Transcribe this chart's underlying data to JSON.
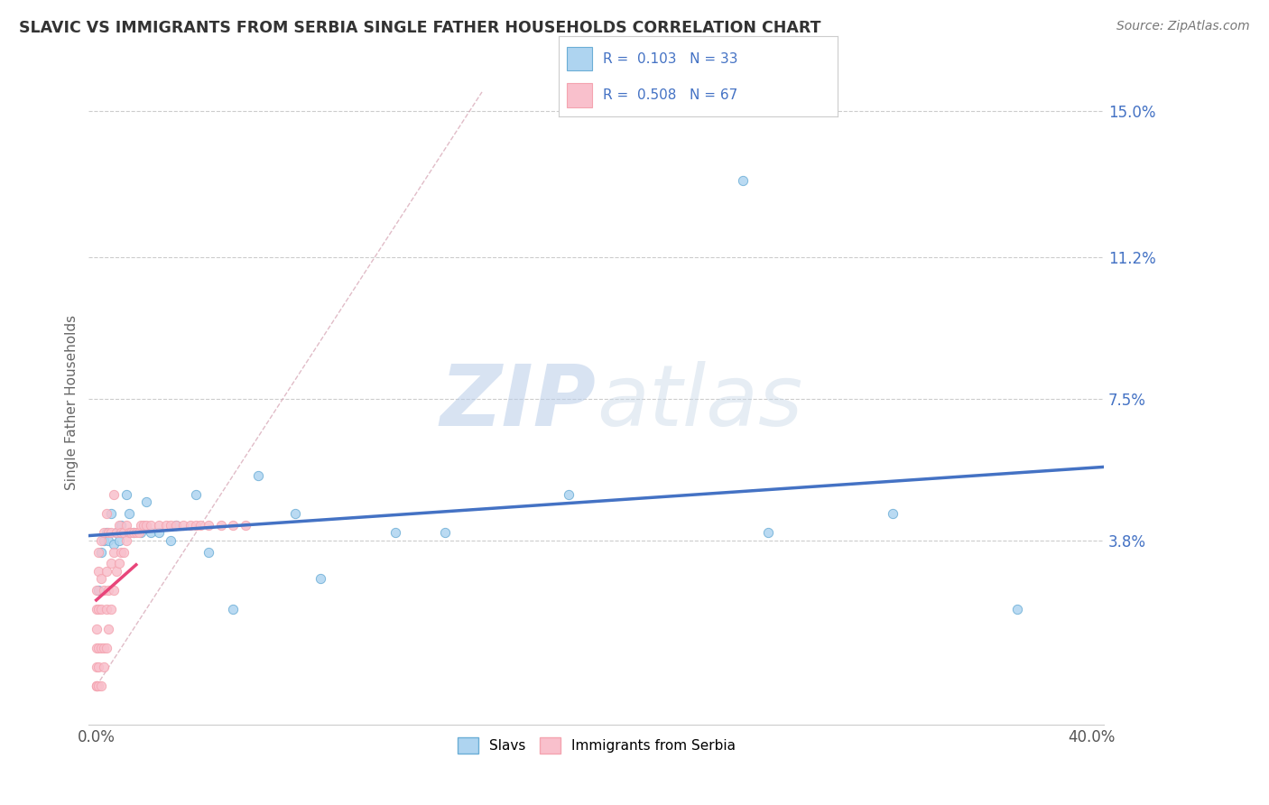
{
  "title": "SLAVIC VS IMMIGRANTS FROM SERBIA SINGLE FATHER HOUSEHOLDS CORRELATION CHART",
  "source_text": "Source: ZipAtlas.com",
  "ylabel": "Single Father Households",
  "watermark_zip": "ZIP",
  "watermark_atlas": "atlas",
  "series": [
    {
      "name": "Slavs",
      "color": "#6baed6",
      "face_color": "#aed4f0",
      "R": 0.103,
      "N": 33,
      "x": [
        0.001,
        0.002,
        0.003,
        0.004,
        0.005,
        0.006,
        0.007,
        0.008,
        0.009,
        0.01,
        0.01,
        0.012,
        0.013,
        0.015,
        0.018,
        0.02,
        0.022,
        0.025,
        0.03,
        0.032,
        0.04,
        0.045,
        0.055,
        0.065,
        0.08,
        0.09,
        0.12,
        0.14,
        0.19,
        0.26,
        0.27,
        0.32,
        0.37
      ],
      "y": [
        0.025,
        0.035,
        0.038,
        0.04,
        0.038,
        0.045,
        0.037,
        0.04,
        0.038,
        0.04,
        0.042,
        0.05,
        0.045,
        0.04,
        0.04,
        0.048,
        0.04,
        0.04,
        0.038,
        0.042,
        0.05,
        0.035,
        0.02,
        0.055,
        0.045,
        0.028,
        0.04,
        0.04,
        0.05,
        0.132,
        0.04,
        0.045,
        0.02
      ],
      "trend_color": "#4472c4"
    },
    {
      "name": "Immigrants from Serbia",
      "color": "#f4a4b0",
      "face_color": "#f9c0cc",
      "R": 0.508,
      "N": 67,
      "x": [
        0.0,
        0.0,
        0.0,
        0.0,
        0.0,
        0.0,
        0.0,
        0.0,
        0.001,
        0.001,
        0.001,
        0.001,
        0.001,
        0.001,
        0.002,
        0.002,
        0.002,
        0.002,
        0.002,
        0.003,
        0.003,
        0.003,
        0.003,
        0.004,
        0.004,
        0.004,
        0.004,
        0.005,
        0.005,
        0.005,
        0.006,
        0.006,
        0.006,
        0.007,
        0.007,
        0.007,
        0.008,
        0.008,
        0.009,
        0.009,
        0.01,
        0.01,
        0.011,
        0.011,
        0.012,
        0.012,
        0.013,
        0.014,
        0.015,
        0.016,
        0.017,
        0.018,
        0.019,
        0.02,
        0.022,
        0.025,
        0.028,
        0.03,
        0.032,
        0.035,
        0.038,
        0.04,
        0.042,
        0.045,
        0.05,
        0.055,
        0.06
      ],
      "y": [
        0.0,
        0.0,
        0.0,
        0.005,
        0.01,
        0.015,
        0.02,
        0.025,
        0.0,
        0.005,
        0.01,
        0.02,
        0.03,
        0.035,
        0.0,
        0.01,
        0.02,
        0.028,
        0.038,
        0.005,
        0.01,
        0.025,
        0.04,
        0.01,
        0.02,
        0.03,
        0.045,
        0.015,
        0.025,
        0.04,
        0.02,
        0.032,
        0.04,
        0.025,
        0.035,
        0.05,
        0.03,
        0.04,
        0.032,
        0.042,
        0.035,
        0.04,
        0.035,
        0.04,
        0.038,
        0.042,
        0.04,
        0.04,
        0.04,
        0.04,
        0.04,
        0.042,
        0.042,
        0.042,
        0.042,
        0.042,
        0.042,
        0.042,
        0.042,
        0.042,
        0.042,
        0.042,
        0.042,
        0.042,
        0.042,
        0.042,
        0.042
      ],
      "trend_color": "#e8457a",
      "trend_x_max": 0.016
    }
  ],
  "yticks": [
    0.0,
    0.038,
    0.075,
    0.112,
    0.15
  ],
  "ytick_labels": [
    "",
    "3.8%",
    "7.5%",
    "11.2%",
    "15.0%"
  ],
  "xtick_labels_edge": [
    "0.0%",
    "40.0%"
  ],
  "xlim": [
    -0.003,
    0.405
  ],
  "ylim": [
    -0.01,
    0.158
  ],
  "grid_color": "#cccccc",
  "background_color": "#ffffff",
  "diag_color": "#d4a0b0"
}
